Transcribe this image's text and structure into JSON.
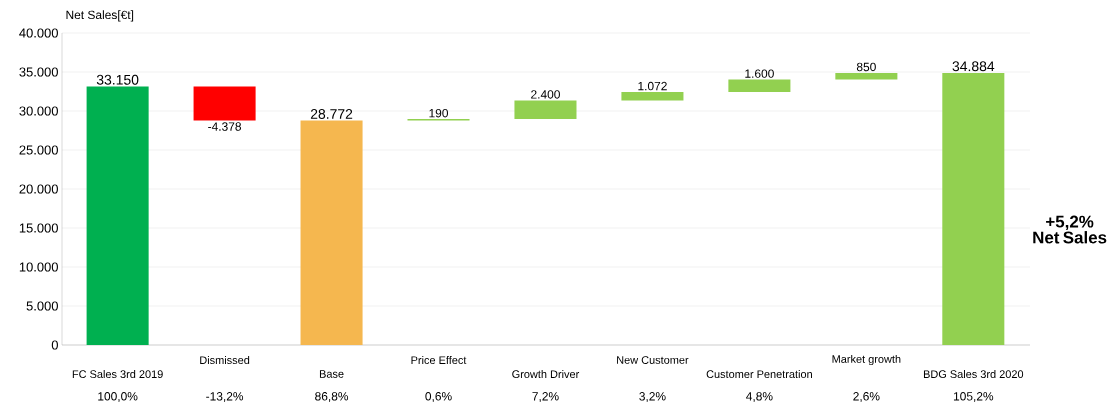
{
  "chart_data": {
    "type": "bar",
    "ylabel": "Net Sales[€t]",
    "categories": [
      "FC Sales 3rd 2019",
      "Dismissed",
      "Base",
      "Price Effect",
      "Growth Driver",
      "New Customer",
      "Customer Penetration",
      "Market growth",
      "BDG Sales 3rd 2020"
    ],
    "values": [
      33150,
      -4378,
      28772,
      190,
      2400,
      1072,
      1600,
      850,
      34884
    ],
    "base": [
      0,
      33150,
      0,
      28772,
      28962,
      31362,
      32434,
      34034,
      0
    ],
    "colors": [
      "#00b050",
      "#ff0000",
      "#f5b74f",
      "#92d050",
      "#92d050",
      "#92d050",
      "#92d050",
      "#92d050",
      "#92d050"
    ],
    "value_labels": [
      "33.150",
      "-4.378",
      "28.772",
      "190",
      "2.400",
      "1.072",
      "1.600",
      "850",
      "34.884"
    ],
    "ylim": [
      0,
      40000
    ],
    "yticks": [
      {
        "value": 0,
        "label": "0"
      },
      {
        "value": 5000,
        "label": "5.000"
      },
      {
        "value": 10000,
        "label": "10.000"
      },
      {
        "value": 15000,
        "label": "15.000"
      },
      {
        "value": 20000,
        "label": "20.000"
      },
      {
        "value": 25000,
        "label": "25.000"
      },
      {
        "value": 30000,
        "label": "30.000"
      },
      {
        "value": 35000,
        "label": "35.000"
      },
      {
        "value": 40000,
        "label": "40.000"
      }
    ],
    "grid": "y",
    "annotations": [
      "100,0%",
      "-13,2%",
      "86,8%",
      "0,6%",
      "7,2%",
      "3,2%",
      "4,8%",
      "2,6%",
      "105,2%",
      "**+5,2% Net Sales**"
    ]
  }
}
